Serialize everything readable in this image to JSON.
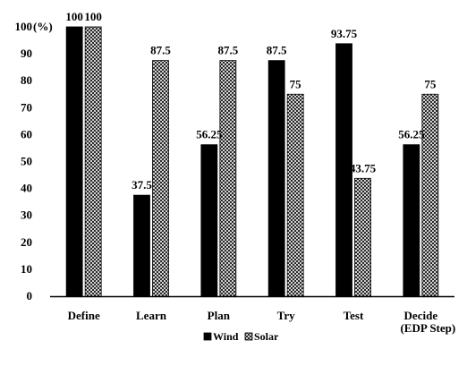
{
  "chart_data": {
    "type": "bar",
    "categories": [
      "Define",
      "Learn",
      "Plan",
      "Try",
      "Test",
      "Decide"
    ],
    "category_sublabel": {
      "index": 5,
      "text": "(EDP Step)"
    },
    "series": [
      {
        "name": "Wind",
        "values": [
          100,
          37.5,
          56.25,
          87.5,
          93.75,
          56.25
        ],
        "labels": [
          "100",
          "37.5",
          "56.25",
          "87.5",
          "93.75",
          "56.25"
        ],
        "color": "#000000",
        "pattern": "solid"
      },
      {
        "name": "Solar",
        "values": [
          100,
          87.5,
          87.5,
          75,
          43.75,
          75
        ],
        "labels": [
          "100",
          "87.5",
          "87.5",
          "75",
          "43.75",
          "75"
        ],
        "color": "#ffffff",
        "pattern": "crosshatch"
      }
    ],
    "ylim": [
      0,
      100
    ],
    "yticks": [
      0,
      10,
      20,
      30,
      40,
      50,
      60,
      70,
      80,
      90,
      100
    ],
    "ytick_labels": [
      "0",
      "10",
      "20",
      "30",
      "40",
      "50",
      "60",
      "70",
      "80",
      "90",
      "100"
    ],
    "ylabel_unit": "(%)",
    "grid": false,
    "legend": {
      "placement": "bottom-center",
      "entries": [
        "Wind",
        "Solar"
      ]
    }
  }
}
